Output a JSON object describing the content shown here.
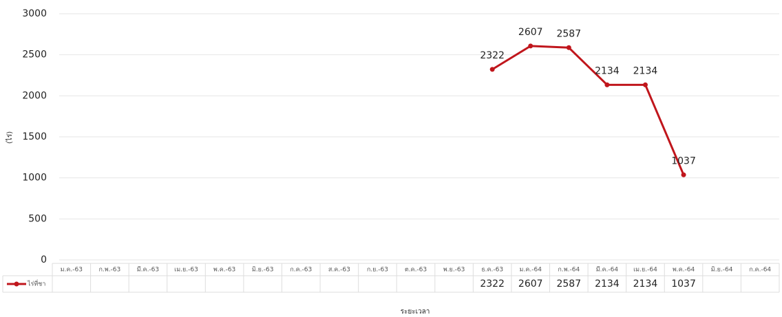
{
  "chart_data": {
    "type": "line",
    "y_label": "(ไร่)",
    "x_label": "ระยะเวลา",
    "categories": [
      "ม.ค.-63",
      "ก.พ.-63",
      "มี.ค.-63",
      "เม.ย.-63",
      "พ.ค.-63",
      "มิ.ย.-63",
      "ก.ค.-63",
      "ส.ค.-63",
      "ก.ย.-63",
      "ต.ค.-63",
      "พ.ย.-63",
      "ธ.ค.-63",
      "ม.ค.-64",
      "ก.พ.-64",
      "มี.ค.-64",
      "เม.ย.-64",
      "พ.ค.-64",
      "มิ.ย.-64",
      "ก.ค.-64"
    ],
    "series": [
      {
        "name": "ไร่ที่ชา",
        "color": "#c0161c",
        "values": [
          null,
          null,
          null,
          null,
          null,
          null,
          null,
          null,
          null,
          null,
          null,
          2322,
          2607,
          2587,
          2134,
          2134,
          1037,
          null,
          null
        ]
      }
    ],
    "ylim": [
      0,
      3000
    ],
    "yticks": [
      0,
      500,
      1000,
      1500,
      2000,
      2500,
      3000
    ],
    "grid": true
  }
}
